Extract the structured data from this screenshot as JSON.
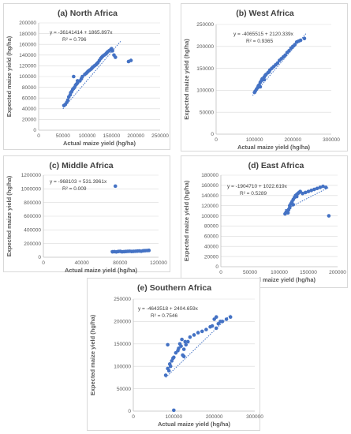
{
  "colors": {
    "point": "#4472c4",
    "trend": "#4472c4",
    "grid": "#d9d9d9",
    "axis": "#bfbfbf",
    "border": "#d9d9d9"
  },
  "chart_data": [
    {
      "type": "scatter",
      "title": "(a) North Africa",
      "xlabel": "Actual maize yield (hg/ha)",
      "ylabel": "Expected maize yield (hg/ha)",
      "xlim": [
        0,
        250000
      ],
      "ylim": [
        0,
        200000
      ],
      "xticks": [
        "0",
        "50000",
        "100000",
        "150000",
        "200000",
        "250000"
      ],
      "yticks": [
        "0",
        "20000",
        "40000",
        "60000",
        "80000",
        "100000",
        "120000",
        "140000",
        "160000",
        "180000",
        "200000"
      ],
      "equation": "y = -36141414 + 1865.897x",
      "r2": "R² = 0.796",
      "trend": {
        "x": [
          50000,
          170000
        ],
        "y": [
          40000,
          167000
        ]
      },
      "grid": true,
      "x": [
        52000,
        55000,
        58000,
        60000,
        62000,
        65000,
        66000,
        68000,
        70000,
        72000,
        74000,
        76000,
        78000,
        80000,
        85000,
        88000,
        90000,
        95000,
        98000,
        100000,
        102000,
        105000,
        108000,
        110000,
        112000,
        115000,
        118000,
        120000,
        122000,
        125000,
        128000,
        130000,
        132000,
        135000,
        138000,
        140000,
        142000,
        145000,
        148000,
        150000,
        152000,
        155000,
        158000,
        185000,
        190000,
        72000,
        80000
      ],
      "y": [
        46000,
        48000,
        52000,
        56000,
        62000,
        66000,
        70000,
        72000,
        76000,
        78000,
        80000,
        84000,
        86000,
        88000,
        92000,
        96000,
        100000,
        104000,
        106000,
        108000,
        110000,
        112000,
        114000,
        116000,
        118000,
        120000,
        122000,
        124000,
        126000,
        130000,
        134000,
        136000,
        138000,
        140000,
        142000,
        144000,
        146000,
        148000,
        150000,
        152000,
        148000,
        140000,
        136000,
        128000,
        130000,
        100000,
        92000
      ]
    },
    {
      "type": "scatter",
      "title": "(b) West Africa",
      "xlabel": "Actual maize yield (hg/ha)",
      "ylabel": "Expected maize yield (hg/ha)",
      "xlim": [
        0,
        300000
      ],
      "ylim": [
        0,
        250000
      ],
      "xticks": [
        "0",
        "100000",
        "200000",
        "300000"
      ],
      "yticks": [
        "0",
        "50000",
        "100000",
        "150000",
        "200000",
        "250000"
      ],
      "equation": "y = -4065515 + 2120.339x",
      "r2": "R² = 0.9365",
      "trend": {
        "x": [
          95000,
          235000
        ],
        "y": [
          88000,
          230000
        ]
      },
      "grid": true,
      "x": [
        100000,
        102000,
        105000,
        108000,
        110000,
        112000,
        115000,
        118000,
        120000,
        125000,
        128000,
        130000,
        135000,
        138000,
        140000,
        145000,
        150000,
        155000,
        160000,
        165000,
        170000,
        175000,
        180000,
        185000,
        190000,
        195000,
        200000,
        205000,
        210000,
        215000,
        220000,
        230000,
        115000,
        125000
      ],
      "y": [
        95000,
        98000,
        102000,
        106000,
        110000,
        112000,
        118000,
        122000,
        126000,
        130000,
        134000,
        136000,
        140000,
        142000,
        146000,
        150000,
        154000,
        158000,
        162000,
        168000,
        172000,
        176000,
        180000,
        186000,
        190000,
        196000,
        200000,
        204000,
        210000,
        212000,
        214000,
        218000,
        108000,
        124000
      ]
    },
    {
      "type": "scatter",
      "title": "(c) Middle Africa",
      "xlabel": "Actual maize yield (hg/ha)",
      "ylabel": "Expected maize yield (hg/ha)",
      "xlim": [
        0,
        120000
      ],
      "ylim": [
        0,
        1200000
      ],
      "xticks": [
        "0",
        "40000",
        "80000",
        "120000"
      ],
      "yticks": [
        "0",
        "200000",
        "400000",
        "600000",
        "800000",
        "1000000",
        "1200000"
      ],
      "equation": "y = -968103 + 531.3961x",
      "r2": "R² = 0.009",
      "trend": {
        "x": [
          70000,
          110000
        ],
        "y": [
          92000,
          85000
        ]
      },
      "grid": true,
      "x": [
        72000,
        74000,
        76000,
        78000,
        80000,
        82000,
        84000,
        86000,
        88000,
        90000,
        92000,
        94000,
        96000,
        98000,
        100000,
        102000,
        104000,
        106000,
        108000,
        110000,
        75000
      ],
      "y": [
        80000,
        82000,
        78000,
        84000,
        86000,
        80000,
        82000,
        84000,
        86000,
        88000,
        84000,
        86000,
        88000,
        90000,
        92000,
        88000,
        94000,
        96000,
        98000,
        100000,
        1040000
      ]
    },
    {
      "type": "scatter",
      "title": "(d) East Africa",
      "xlabel": "Actual maize yield (hg/ha)",
      "ylabel": "Expected maize yield (hg/ha)",
      "xlim": [
        0,
        200000
      ],
      "ylim": [
        0,
        180000
      ],
      "xticks": [
        "0",
        "50000",
        "100000",
        "150000",
        "200000"
      ],
      "yticks": [
        "0",
        "20000",
        "40000",
        "60000",
        "80000",
        "100000",
        "120000",
        "140000",
        "160000",
        "180000"
      ],
      "equation": "y = -1904710 + 1022.619x",
      "r2": "R² = 0.5289",
      "trend": {
        "x": [
          110000,
          185000
        ],
        "y": [
          112000,
          156000
        ]
      },
      "grid": true,
      "x": [
        110000,
        112000,
        114000,
        116000,
        118000,
        120000,
        122000,
        124000,
        126000,
        128000,
        130000,
        132000,
        134000,
        136000,
        140000,
        145000,
        150000,
        155000,
        160000,
        165000,
        170000,
        175000,
        180000,
        185000,
        118000,
        124000,
        130000,
        115000
      ],
      "y": [
        104000,
        108000,
        110000,
        112000,
        120000,
        124000,
        128000,
        132000,
        136000,
        140000,
        142000,
        144000,
        146000,
        148000,
        144000,
        146000,
        148000,
        150000,
        152000,
        154000,
        156000,
        158000,
        156000,
        100000,
        116000,
        122000,
        138000,
        106000
      ]
    },
    {
      "type": "scatter",
      "title": "(e) Southern Africa",
      "xlabel": "Actual maize yield (hg/ha)",
      "ylabel": "Expected maize yield (hg/ha)",
      "xlim": [
        0,
        300000
      ],
      "ylim": [
        0,
        250000
      ],
      "xticks": [
        "0",
        "100000",
        "200000",
        "300000"
      ],
      "yticks": [
        "0",
        "50000",
        "100000",
        "150000",
        "200000",
        "250000"
      ],
      "equation": "y = -4643518 + 2404.659x",
      "r2": "R² = 0.7546",
      "trend": {
        "x": [
          80000,
          240000
        ],
        "y": [
          75000,
          215000
        ]
      },
      "grid": true,
      "x": [
        80000,
        85000,
        88000,
        90000,
        92000,
        95000,
        98000,
        100000,
        105000,
        110000,
        112000,
        115000,
        118000,
        120000,
        122000,
        125000,
        128000,
        130000,
        135000,
        140000,
        150000,
        160000,
        170000,
        180000,
        190000,
        195000,
        200000,
        205000,
        210000,
        215000,
        220000,
        230000,
        240000,
        100000,
        85000,
        125000,
        205000
      ],
      "y": [
        80000,
        95000,
        90000,
        105000,
        100000,
        112000,
        118000,
        120000,
        130000,
        135000,
        140000,
        150000,
        145000,
        160000,
        125000,
        138000,
        155000,
        148000,
        155000,
        165000,
        170000,
        175000,
        178000,
        182000,
        188000,
        190000,
        205000,
        210000,
        195000,
        200000,
        200000,
        205000,
        210000,
        2000,
        148000,
        122000,
        185000
      ]
    }
  ]
}
